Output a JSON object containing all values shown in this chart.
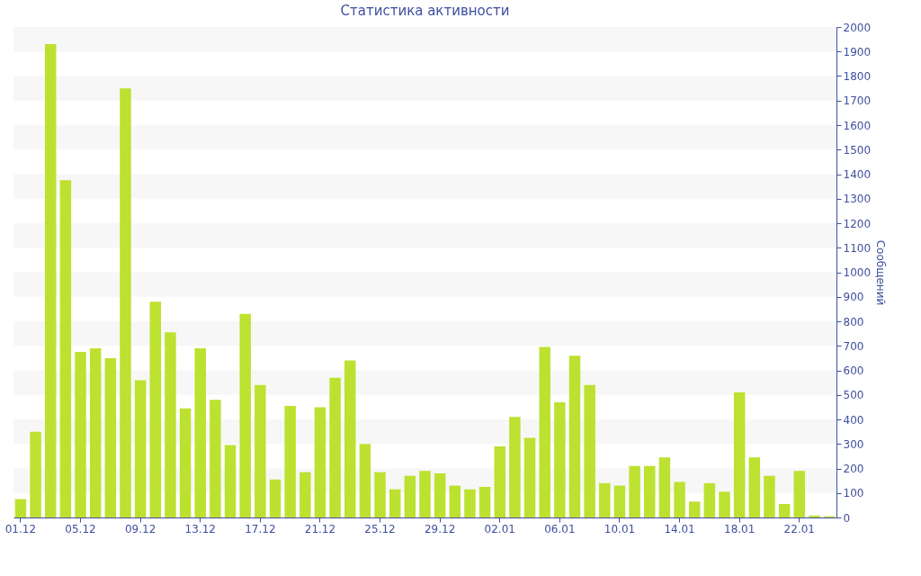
{
  "chart_data": {
    "type": "bar",
    "title": "Статистика активности",
    "ylabel": "Сообщений",
    "color": "#bde130",
    "categories": [
      "01.12",
      null,
      null,
      null,
      "05.12",
      null,
      null,
      null,
      "09.12",
      null,
      null,
      null,
      "13.12",
      null,
      null,
      null,
      "17.12",
      null,
      null,
      null,
      "21.12",
      null,
      null,
      null,
      "25.12",
      null,
      null,
      null,
      "29.12",
      null,
      null,
      null,
      "02.01",
      null,
      null,
      null,
      "06.01",
      null,
      null,
      null,
      "10.01",
      null,
      null,
      null,
      "14.01",
      null,
      null,
      null,
      "18.01",
      null,
      null,
      null,
      "22.01",
      null,
      null
    ],
    "values": [
      75,
      350,
      1930,
      1375,
      675,
      690,
      650,
      1750,
      560,
      880,
      755,
      445,
      690,
      480,
      295,
      830,
      540,
      155,
      455,
      185,
      450,
      570,
      640,
      300,
      185,
      115,
      170,
      190,
      180,
      130,
      115,
      125,
      290,
      410,
      325,
      695,
      470,
      660,
      540,
      140,
      130,
      210,
      210,
      245,
      145,
      65,
      140,
      105,
      510,
      245,
      170,
      55,
      190,
      8,
      5
    ],
    "ylim": [
      0,
      2000
    ],
    "yticks": [
      0,
      100,
      200,
      300,
      400,
      500,
      600,
      700,
      800,
      900,
      1000,
      1100,
      1200,
      1300,
      1400,
      1500,
      1600,
      1700,
      1800,
      1900,
      2000
    ],
    "bands": [
      {
        "axis": "y",
        "from": 100,
        "to": 200,
        "color": "#f7f7f7"
      },
      {
        "axis": "y",
        "from": 300,
        "to": 400,
        "color": "#f7f7f7"
      },
      {
        "axis": "y",
        "from": 500,
        "to": 600,
        "color": "#f7f7f7"
      },
      {
        "axis": "y",
        "from": 700,
        "to": 800,
        "color": "#f7f7f7"
      },
      {
        "axis": "y",
        "from": 900,
        "to": 1000,
        "color": "#f7f7f7"
      },
      {
        "axis": "y",
        "from": 1100,
        "to": 1200,
        "color": "#f7f7f7"
      },
      {
        "axis": "y",
        "from": 1300,
        "to": 1400,
        "color": "#f7f7f7"
      },
      {
        "axis": "y",
        "from": 1500,
        "to": 1600,
        "color": "#f7f7f7"
      },
      {
        "axis": "y",
        "from": 1700,
        "to": 1800,
        "color": "#f7f7f7"
      },
      {
        "axis": "y",
        "from": 1900,
        "to": 2000,
        "color": "#f7f7f7"
      }
    ],
    "grid": false
  }
}
